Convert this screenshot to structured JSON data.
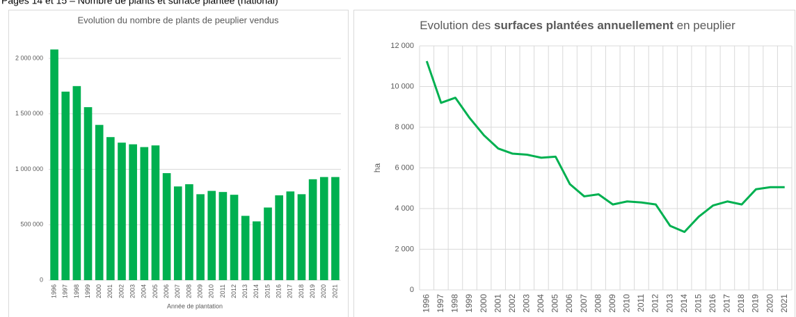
{
  "header": "Pages 14 et 15 – Nombre de plants et surface plantée (national)",
  "chart_data": [
    {
      "type": "bar",
      "title": "Evolution du nombre de plants de peuplier vendus",
      "x_label": "Année de plantation",
      "color": "#00b050",
      "grid": true,
      "categories": [
        "1996",
        "1997",
        "1998",
        "1999",
        "2000",
        "2001",
        "2002",
        "2003",
        "2004",
        "2005",
        "2006",
        "2007",
        "2008",
        "2009",
        "2010",
        "2011",
        "2012",
        "2013",
        "2014",
        "2015",
        "2016",
        "2017",
        "2018",
        "2019",
        "2020",
        "2021"
      ],
      "values": [
        2080000,
        1700000,
        1750000,
        1560000,
        1400000,
        1290000,
        1240000,
        1225000,
        1200000,
        1215000,
        965000,
        845000,
        865000,
        775000,
        805000,
        795000,
        770000,
        580000,
        530000,
        655000,
        765000,
        800000,
        775000,
        910000,
        930000,
        930000
      ],
      "ylim": [
        0,
        2100000
      ],
      "yticks": [
        0,
        {
          "value": 500000,
          "label": "500 000"
        },
        {
          "value": 1000000,
          "label": "1 000 000"
        },
        {
          "value": 1500000,
          "label": "1 500 000"
        },
        {
          "value": 2000000,
          "label": "2 000 000"
        }
      ]
    },
    {
      "type": "line",
      "title": [
        {
          "text": "Evolution des ",
          "bold": false
        },
        {
          "text": "surfaces plantées annuellement",
          "bold": true
        },
        {
          "text": " en peuplier",
          "bold": false
        }
      ],
      "y_label": "ha",
      "color": "#00b050",
      "grid": true,
      "x_grid": true,
      "categories": [
        "1996",
        "1997",
        "1998",
        "1999",
        "2000",
        "2001",
        "2002",
        "2003",
        "2004",
        "2005",
        "2006",
        "2007",
        "2008",
        "2009",
        "2010",
        "2011",
        "2012",
        "2013",
        "2014",
        "2015",
        "2016",
        "2017",
        "2018",
        "2019",
        "2020",
        "2021"
      ],
      "values": [
        11250,
        9200,
        9450,
        8450,
        7600,
        6950,
        6700,
        6650,
        6500,
        6550,
        5200,
        4600,
        4700,
        4200,
        4350,
        4300,
        4200,
        3150,
        2850,
        3600,
        4150,
        4350,
        4200,
        4950,
        5050,
        5050
      ],
      "ylim": [
        0,
        12000
      ],
      "yticks": [
        0,
        {
          "value": 2000,
          "label": "2 000"
        },
        {
          "value": 4000,
          "label": "4 000"
        },
        {
          "value": 6000,
          "label": "6 000"
        },
        {
          "value": 8000,
          "label": "8 000"
        },
        {
          "value": 10000,
          "label": "10 000"
        },
        {
          "value": 12000,
          "label": "12 000"
        }
      ]
    }
  ]
}
